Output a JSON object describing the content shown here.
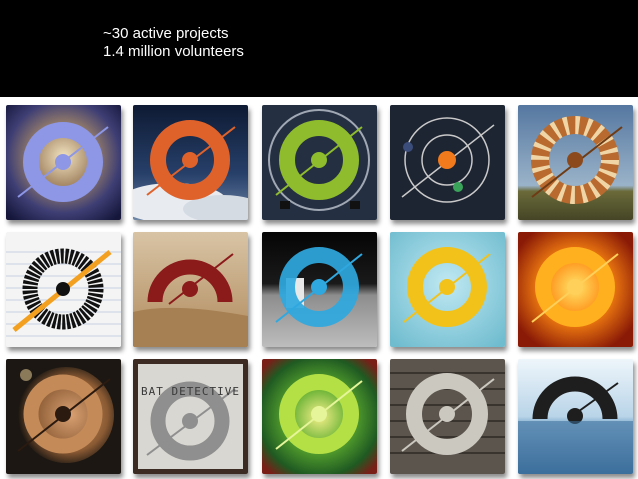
{
  "caption": {
    "line1": "~30 active projects",
    "line2": "1.4 million volunteers"
  },
  "tiles": [
    {
      "id": "galaxy",
      "icon": "zooniverse-ring-icon",
      "bg": "#3b3a6a",
      "ring": "#8d97e6"
    },
    {
      "id": "cloud-sky",
      "icon": "zooniverse-ring-icon",
      "bg": "#1a2a48",
      "ring": "#e0622b"
    },
    {
      "id": "green-circuit",
      "icon": "zooniverse-ring-icon",
      "bg": "#243042",
      "ring": "#8ebc2d"
    },
    {
      "id": "solar-system",
      "icon": "orbit-icon",
      "bg": "#1d2432",
      "ring": "#c9c9c9"
    },
    {
      "id": "giraffe-pattern",
      "icon": "zooniverse-ring-icon",
      "bg": "#6f8fb3",
      "ring": "#b96a2e"
    },
    {
      "id": "scribble-notebook",
      "icon": "zooniverse-ring-icon",
      "bg": "#f4f4f4",
      "ring": "#111111"
    },
    {
      "id": "sand-dunes",
      "icon": "zooniverse-ring-icon",
      "bg": "#c8a77d",
      "ring": "#8b1a1a"
    },
    {
      "id": "moon-surface",
      "icon": "zooniverse-ring-icon",
      "bg": "#9a9a9a",
      "ring": "#2fa8e0"
    },
    {
      "id": "light-blue",
      "icon": "zooniverse-ring-icon",
      "bg": "#8fd0df",
      "ring": "#f2c21b"
    },
    {
      "id": "sun-fire",
      "icon": "zooniverse-ring-icon",
      "bg": "#c83a0e",
      "ring": "#ffb01f"
    },
    {
      "id": "mars-surface",
      "icon": "zooniverse-ring-icon",
      "bg": "#1c1712",
      "ring": "#c48a58"
    },
    {
      "id": "bat-detective",
      "icon": "zooniverse-ring-icon",
      "bg": "#d9d7d1",
      "ring": "#8f8f8f",
      "title": "BAT DETECTIVE"
    },
    {
      "id": "green-nebula",
      "icon": "zooniverse-ring-icon",
      "bg": "#1f5a22",
      "ring": "#b4e046"
    },
    {
      "id": "wood-planks",
      "icon": "zooniverse-ring-icon",
      "bg": "#5b554e",
      "ring": "#cbc8c0"
    },
    {
      "id": "ocean-horizon",
      "icon": "zooniverse-ring-icon",
      "bg": "#c8dff0",
      "ring": "#1e1e1e"
    }
  ]
}
